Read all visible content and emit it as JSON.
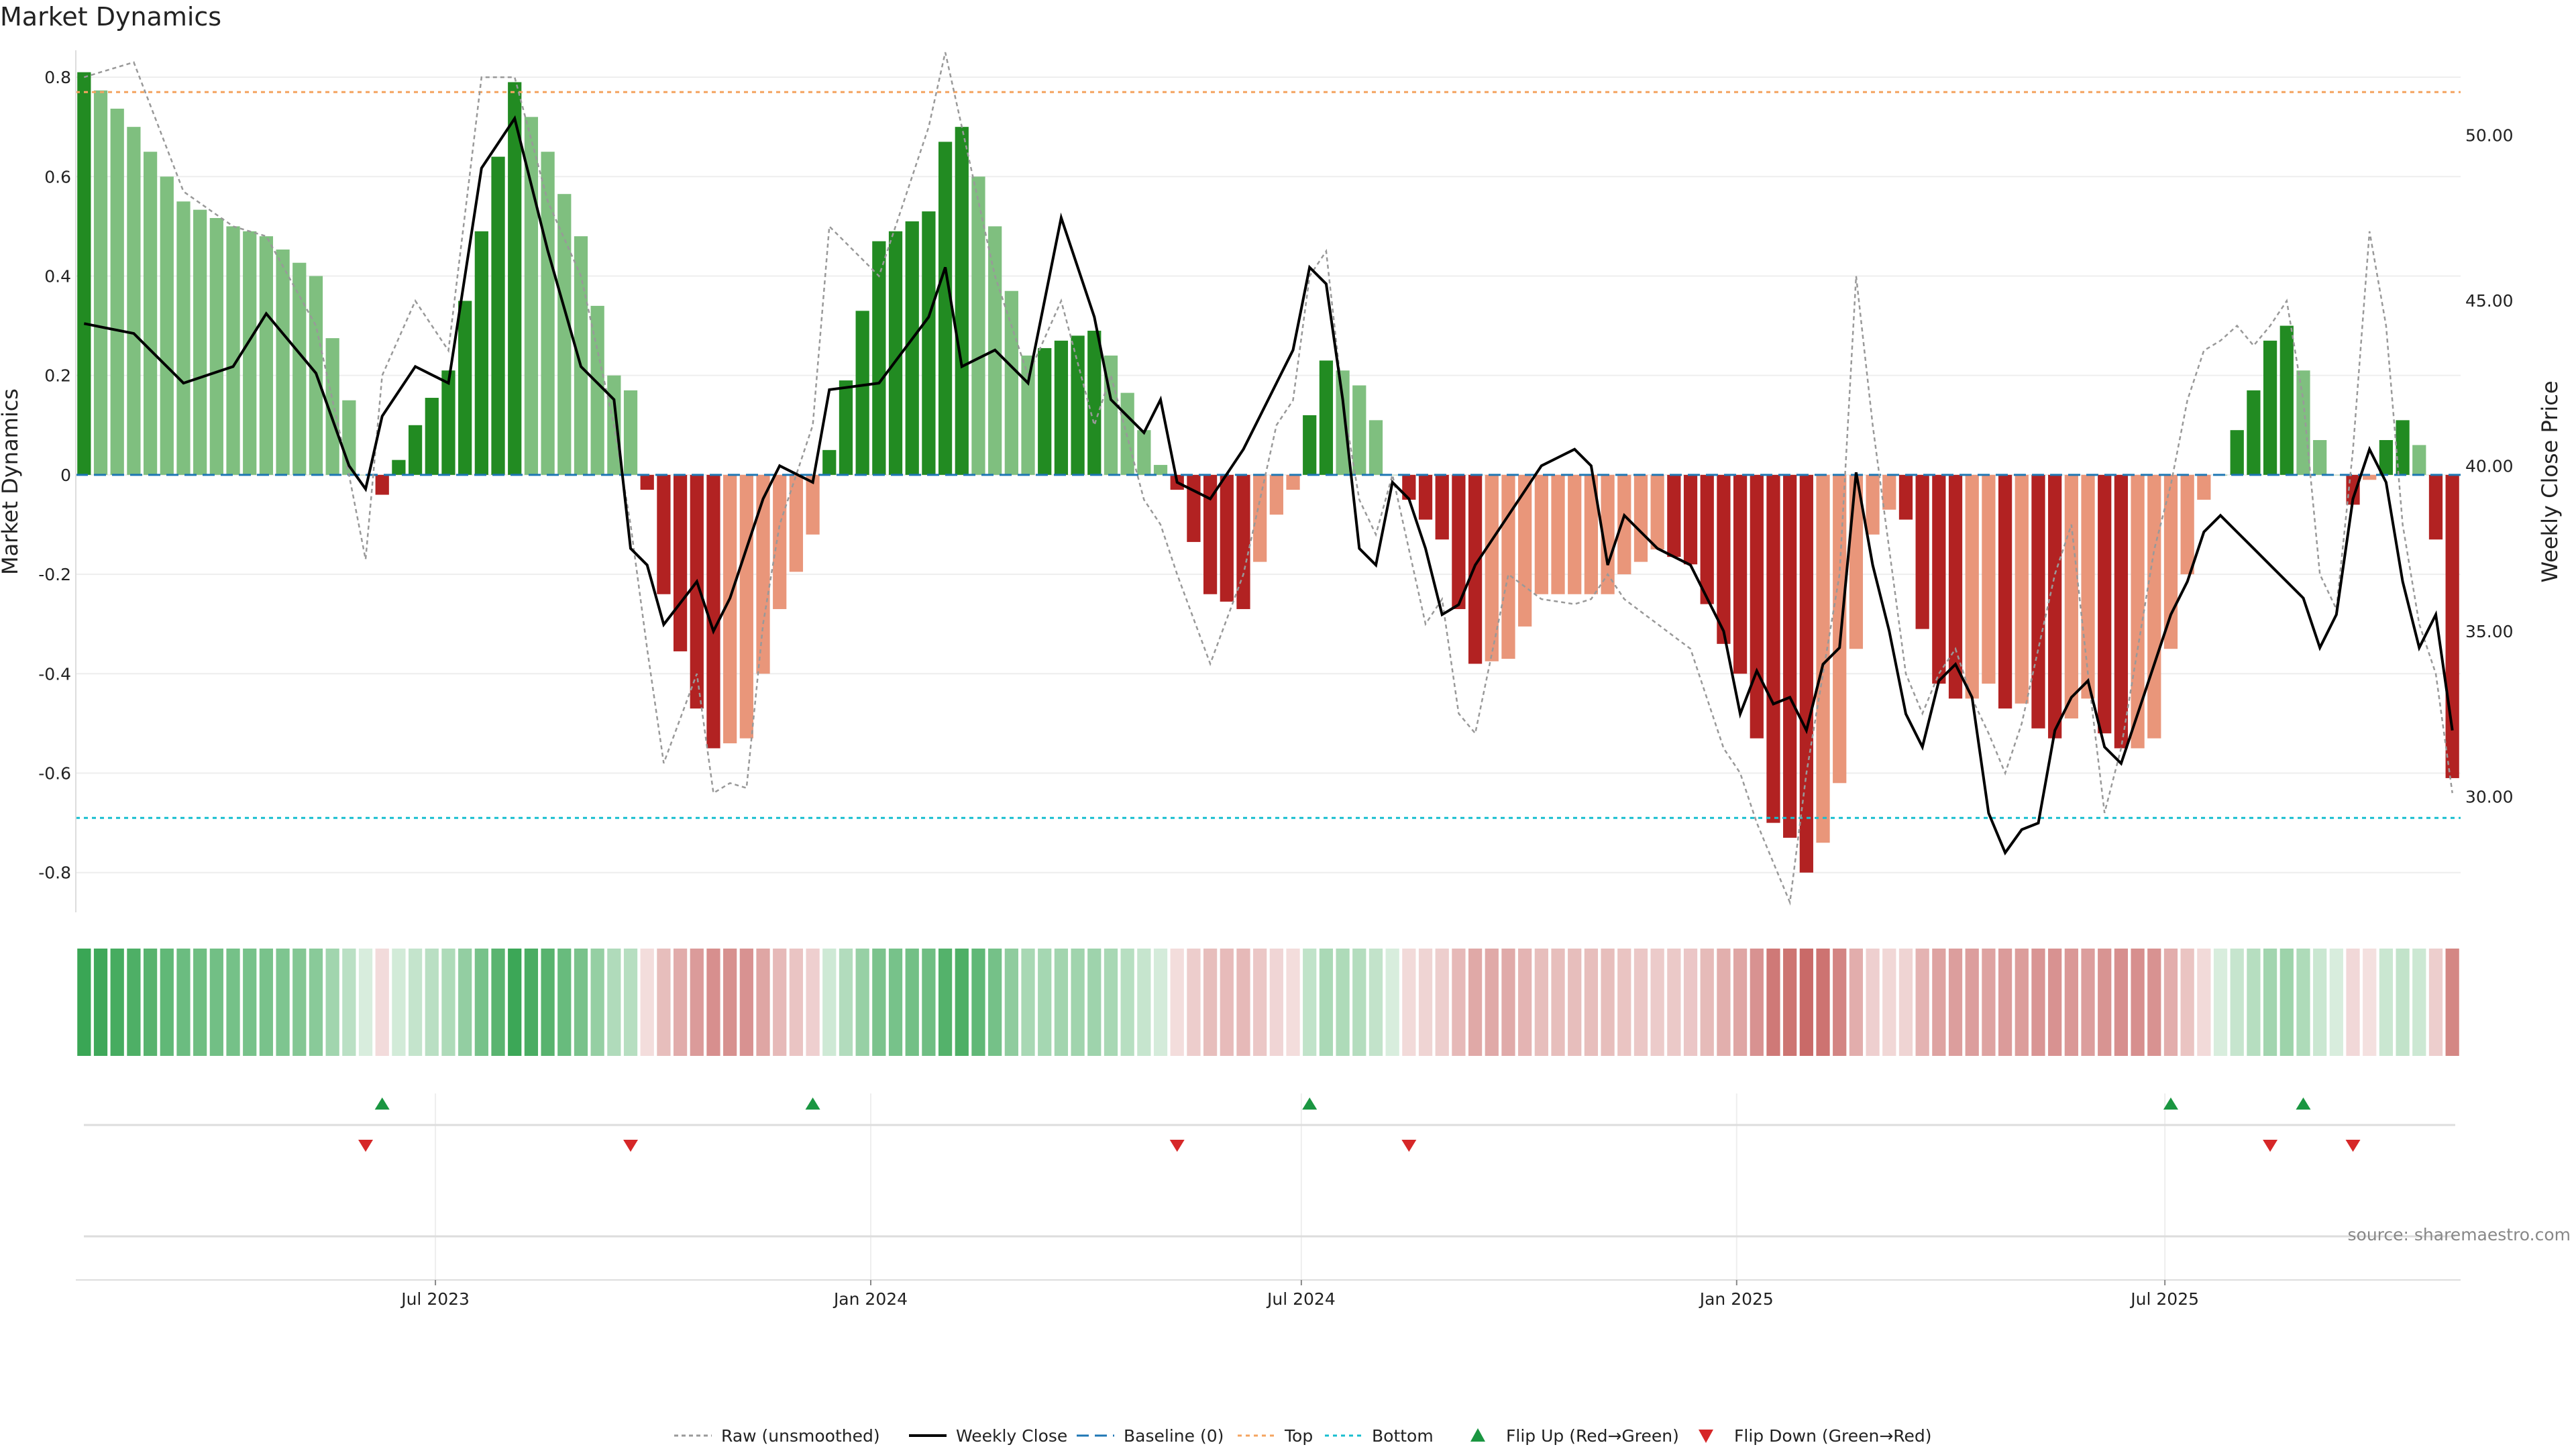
{
  "chart_data": {
    "type": "bar",
    "title": "Market Dynamics",
    "ylabel": "Market Dynamics",
    "y2label": "Weekly Close Price",
    "source": "source: sharemaestro.com",
    "ylim": [
      -0.88,
      0.85
    ],
    "y2lim": [
      26.5,
      52.5
    ],
    "yticks": [
      "0.8",
      "0.6",
      "0.4",
      "0.2",
      "0",
      "-0.2",
      "-0.4",
      "-0.6",
      "-0.8"
    ],
    "y2ticks": [
      "50.00",
      "45.00",
      "40.00",
      "35.00",
      "30.00"
    ],
    "xticks": [
      "Jul 2023",
      "Jan 2024",
      "Jul 2024",
      "Jan 2025",
      "Jul 2025"
    ],
    "x_start": "2023-01-30",
    "week_count": 144,
    "top_level": 0.77,
    "bottom_level": -0.69,
    "baseline": 0,
    "colors": {
      "strong_green": "#228b22",
      "light_green": "#7fbf7f",
      "strong_red": "#b22222",
      "light_red": "#e9967a",
      "raw": "#999999",
      "close": "#000000",
      "baseline": "#1f77b4",
      "top": "#f4a460",
      "bottom": "#17becf",
      "flip_up": "#1a9641",
      "flip_down": "#d62728"
    },
    "legend": [
      "Raw (unsmoothed)",
      "Weekly Close",
      "Baseline (0)",
      "Top",
      "Bottom",
      "Flip Up (Red→Green)",
      "Flip Down (Green→Red)"
    ],
    "anchors": [
      {
        "w": 0,
        "bar": 0.81,
        "raw": 0.8,
        "close": 44.3
      },
      {
        "w": 3,
        "bar": 0.7,
        "raw": 0.83,
        "close": 44.0
      },
      {
        "w": 6,
        "bar": 0.55,
        "raw": 0.57,
        "close": 42.5
      },
      {
        "w": 9,
        "bar": 0.5,
        "raw": 0.5,
        "close": 43.0
      },
      {
        "w": 11,
        "bar": 0.48,
        "raw": 0.48,
        "close": 44.6
      },
      {
        "w": 14,
        "bar": 0.4,
        "raw": 0.3,
        "close": 42.8
      },
      {
        "w": 16,
        "bar": 0.15,
        "raw": 0.0,
        "close": 40.0
      },
      {
        "w": 17,
        "bar": 0.0,
        "raw": -0.17,
        "close": 39.3
      },
      {
        "w": 18,
        "bar": -0.04,
        "raw": 0.2,
        "close": 41.5
      },
      {
        "w": 20,
        "bar": 0.1,
        "raw": 0.35,
        "close": 43.0
      },
      {
        "w": 22,
        "bar": 0.21,
        "raw": 0.25,
        "close": 42.5
      },
      {
        "w": 24,
        "bar": 0.49,
        "raw": 0.8,
        "close": 49.0
      },
      {
        "w": 26,
        "bar": 0.79,
        "raw": 0.8,
        "close": 50.5
      },
      {
        "w": 28,
        "bar": 0.65,
        "raw": 0.55,
        "close": 46.5
      },
      {
        "w": 30,
        "bar": 0.48,
        "raw": 0.4,
        "close": 43.0
      },
      {
        "w": 32,
        "bar": 0.2,
        "raw": 0.1,
        "close": 42.0
      },
      {
        "w": 33,
        "bar": 0.17,
        "raw": -0.1,
        "close": 37.5
      },
      {
        "w": 34,
        "bar": -0.03,
        "raw": -0.35,
        "close": 37.0
      },
      {
        "w": 35,
        "bar": -0.24,
        "raw": -0.58,
        "close": 35.2
      },
      {
        "w": 37,
        "bar": -0.47,
        "raw": -0.4,
        "close": 36.5
      },
      {
        "w": 38,
        "bar": -0.55,
        "raw": -0.64,
        "close": 35.0
      },
      {
        "w": 39,
        "bar": -0.54,
        "raw": -0.62,
        "close": 36.0
      },
      {
        "w": 40,
        "bar": -0.53,
        "raw": -0.63,
        "close": 37.5
      },
      {
        "w": 41,
        "bar": -0.4,
        "raw": -0.3,
        "close": 39.0
      },
      {
        "w": 42,
        "bar": -0.27,
        "raw": -0.1,
        "close": 40.0
      },
      {
        "w": 44,
        "bar": -0.12,
        "raw": 0.1,
        "close": 39.5
      },
      {
        "w": 45,
        "bar": 0.05,
        "raw": 0.5,
        "close": 42.3
      },
      {
        "w": 48,
        "bar": 0.47,
        "raw": 0.4,
        "close": 42.5
      },
      {
        "w": 51,
        "bar": 0.53,
        "raw": 0.7,
        "close": 44.5
      },
      {
        "w": 52,
        "bar": 0.67,
        "raw": 0.85,
        "close": 46.0
      },
      {
        "w": 53,
        "bar": 0.7,
        "raw": 0.7,
        "close": 43.0
      },
      {
        "w": 55,
        "bar": 0.5,
        "raw": 0.4,
        "close": 43.5
      },
      {
        "w": 57,
        "bar": 0.24,
        "raw": 0.2,
        "close": 42.5
      },
      {
        "w": 59,
        "bar": 0.27,
        "raw": 0.35,
        "close": 47.5
      },
      {
        "w": 61,
        "bar": 0.29,
        "raw": 0.1,
        "close": 44.5
      },
      {
        "w": 62,
        "bar": 0.24,
        "raw": 0.2,
        "close": 42.0
      },
      {
        "w": 64,
        "bar": 0.09,
        "raw": -0.05,
        "close": 41.0
      },
      {
        "w": 65,
        "bar": 0.02,
        "raw": -0.1,
        "close": 42.0
      },
      {
        "w": 66,
        "bar": -0.03,
        "raw": -0.2,
        "close": 39.5
      },
      {
        "w": 68,
        "bar": -0.24,
        "raw": -0.38,
        "close": 39.0
      },
      {
        "w": 70,
        "bar": -0.27,
        "raw": -0.2,
        "close": 40.5
      },
      {
        "w": 72,
        "bar": -0.08,
        "raw": 0.1,
        "close": 42.5
      },
      {
        "w": 73,
        "bar": -0.03,
        "raw": 0.15,
        "close": 43.5
      },
      {
        "w": 74,
        "bar": 0.12,
        "raw": 0.4,
        "close": 46.0
      },
      {
        "w": 75,
        "bar": 0.23,
        "raw": 0.45,
        "close": 45.5
      },
      {
        "w": 76,
        "bar": 0.21,
        "raw": 0.15,
        "close": 42.0
      },
      {
        "w": 77,
        "bar": 0.18,
        "raw": -0.05,
        "close": 37.5
      },
      {
        "w": 78,
        "bar": 0.11,
        "raw": -0.12,
        "close": 37.0
      },
      {
        "w": 79,
        "bar": 0.0,
        "raw": 0.0,
        "close": 39.5
      },
      {
        "w": 80,
        "bar": -0.05,
        "raw": -0.15,
        "close": 39.0
      },
      {
        "w": 81,
        "bar": -0.09,
        "raw": -0.3,
        "close": 37.5
      },
      {
        "w": 82,
        "bar": -0.13,
        "raw": -0.25,
        "close": 35.5
      },
      {
        "w": 83,
        "bar": -0.27,
        "raw": -0.48,
        "close": 35.8
      },
      {
        "w": 84,
        "bar": -0.38,
        "raw": -0.52,
        "close": 37.0
      },
      {
        "w": 86,
        "bar": -0.37,
        "raw": -0.2,
        "close": 38.5
      },
      {
        "w": 88,
        "bar": -0.24,
        "raw": -0.25,
        "close": 40.0
      },
      {
        "w": 90,
        "bar": -0.24,
        "raw": -0.26,
        "close": 40.5
      },
      {
        "w": 91,
        "bar": -0.24,
        "raw": -0.25,
        "close": 40.0
      },
      {
        "w": 92,
        "bar": -0.24,
        "raw": -0.2,
        "close": 37.0
      },
      {
        "w": 93,
        "bar": -0.2,
        "raw": -0.25,
        "close": 38.5
      },
      {
        "w": 95,
        "bar": -0.15,
        "raw": -0.3,
        "close": 37.5
      },
      {
        "w": 97,
        "bar": -0.18,
        "raw": -0.35,
        "close": 37.0
      },
      {
        "w": 99,
        "bar": -0.34,
        "raw": -0.55,
        "close": 35.0
      },
      {
        "w": 100,
        "bar": -0.4,
        "raw": -0.6,
        "close": 32.5
      },
      {
        "w": 101,
        "bar": -0.53,
        "raw": -0.7,
        "close": 33.8
      },
      {
        "w": 102,
        "bar": -0.7,
        "raw": -0.78,
        "close": 32.8
      },
      {
        "w": 103,
        "bar": -0.73,
        "raw": -0.86,
        "close": 33.0
      },
      {
        "w": 104,
        "bar": -0.8,
        "raw": -0.6,
        "close": 32.0
      },
      {
        "w": 105,
        "bar": -0.74,
        "raw": -0.4,
        "close": 34.0
      },
      {
        "w": 106,
        "bar": -0.62,
        "raw": -0.2,
        "close": 34.5
      },
      {
        "w": 107,
        "bar": -0.35,
        "raw": 0.4,
        "close": 39.8
      },
      {
        "w": 108,
        "bar": -0.12,
        "raw": 0.1,
        "close": 37.0
      },
      {
        "w": 109,
        "bar": -0.07,
        "raw": -0.15,
        "close": 35.0
      },
      {
        "w": 110,
        "bar": -0.09,
        "raw": -0.4,
        "close": 32.5
      },
      {
        "w": 111,
        "bar": -0.31,
        "raw": -0.48,
        "close": 31.5
      },
      {
        "w": 112,
        "bar": -0.42,
        "raw": -0.4,
        "close": 33.5
      },
      {
        "w": 113,
        "bar": -0.45,
        "raw": -0.35,
        "close": 34.0
      },
      {
        "w": 114,
        "bar": -0.45,
        "raw": -0.45,
        "close": 33.0
      },
      {
        "w": 115,
        "bar": -0.42,
        "raw": -0.52,
        "close": 29.5
      },
      {
        "w": 116,
        "bar": -0.47,
        "raw": -0.6,
        "close": 28.3
      },
      {
        "w": 117,
        "bar": -0.46,
        "raw": -0.5,
        "close": 29.0
      },
      {
        "w": 118,
        "bar": -0.51,
        "raw": -0.35,
        "close": 29.2
      },
      {
        "w": 119,
        "bar": -0.53,
        "raw": -0.2,
        "close": 32.0
      },
      {
        "w": 120,
        "bar": -0.49,
        "raw": -0.1,
        "close": 33.0
      },
      {
        "w": 121,
        "bar": -0.45,
        "raw": -0.4,
        "close": 33.5
      },
      {
        "w": 122,
        "bar": -0.52,
        "raw": -0.68,
        "close": 31.5
      },
      {
        "w": 123,
        "bar": -0.55,
        "raw": -0.55,
        "close": 31.0
      },
      {
        "w": 124,
        "bar": -0.55,
        "raw": -0.35,
        "close": 32.5
      },
      {
        "w": 125,
        "bar": -0.53,
        "raw": -0.15,
        "close": 34.0
      },
      {
        "w": 126,
        "bar": -0.35,
        "raw": -0.02,
        "close": 35.5
      },
      {
        "w": 127,
        "bar": -0.2,
        "raw": 0.15,
        "close": 36.5
      },
      {
        "w": 128,
        "bar": -0.05,
        "raw": 0.25,
        "close": 38.0
      },
      {
        "w": 129,
        "bar": 0.0,
        "raw": 0.27,
        "close": 38.5
      },
      {
        "w": 130,
        "bar": 0.09,
        "raw": 0.3,
        "close": 38.0
      },
      {
        "w": 131,
        "bar": 0.17,
        "raw": 0.26,
        "close": 37.5
      },
      {
        "w": 132,
        "bar": 0.27,
        "raw": 0.3,
        "close": 37.0
      },
      {
        "w": 133,
        "bar": 0.3,
        "raw": 0.35,
        "close": 36.5
      },
      {
        "w": 134,
        "bar": 0.21,
        "raw": 0.15,
        "close": 36.0
      },
      {
        "w": 135,
        "bar": 0.07,
        "raw": -0.2,
        "close": 34.5
      },
      {
        "w": 136,
        "bar": 0.0,
        "raw": -0.27,
        "close": 35.5
      },
      {
        "w": 137,
        "bar": -0.06,
        "raw": 0.05,
        "close": 39.0
      },
      {
        "w": 138,
        "bar": -0.01,
        "raw": 0.49,
        "close": 40.5
      },
      {
        "w": 139,
        "bar": 0.07,
        "raw": 0.3,
        "close": 39.5
      },
      {
        "w": 140,
        "bar": 0.11,
        "raw": -0.1,
        "close": 36.5
      },
      {
        "w": 141,
        "bar": 0.06,
        "raw": -0.3,
        "close": 34.5
      },
      {
        "w": 142,
        "bar": -0.13,
        "raw": -0.4,
        "close": 35.5
      },
      {
        "w": 143,
        "bar": -0.61,
        "raw": -0.64,
        "close": 32.0
      }
    ],
    "flips_up": [
      18,
      44,
      74,
      126,
      134
    ],
    "flips_down": [
      17,
      33,
      66,
      80,
      132,
      137
    ]
  }
}
